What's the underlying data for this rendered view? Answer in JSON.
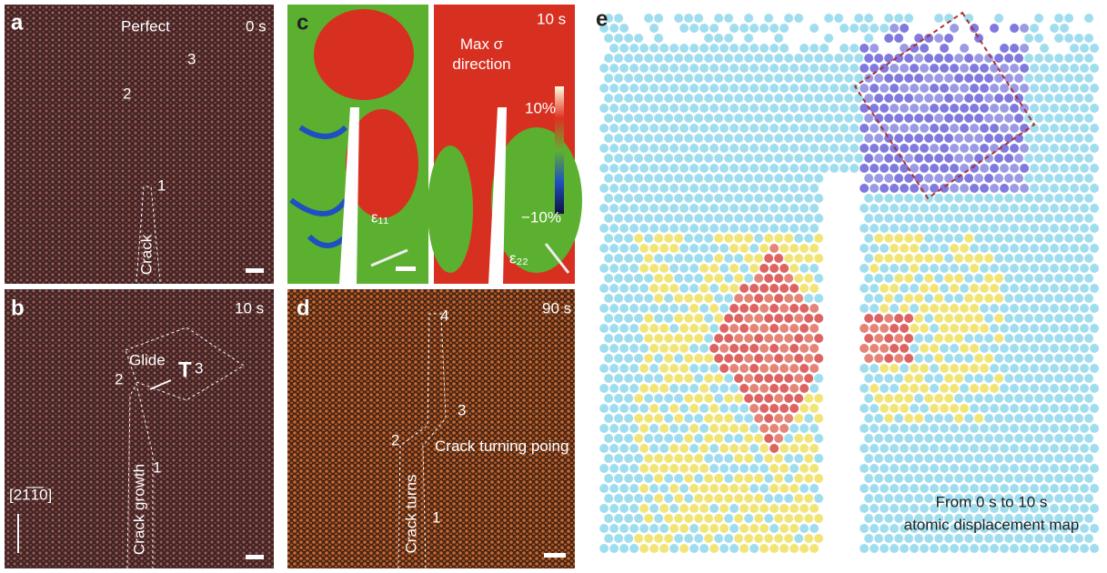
{
  "panels": {
    "a": {
      "label": "a",
      "title": "Perfect",
      "time": "0 s",
      "markers": [
        "3",
        "2",
        "1"
      ],
      "crack": "Crack"
    },
    "b": {
      "label": "b",
      "time": "10 s",
      "glide": "Glide",
      "markers": [
        "3",
        "2",
        "1"
      ],
      "crack": "Crack growth",
      "direction": "[21̅1̅0]"
    },
    "c": {
      "label": "c",
      "time": "10 s",
      "annotation": "Max σ direction",
      "colorbar_max": "10%",
      "colorbar_min": "−10%",
      "strain_left": "ε₁₁",
      "strain_right": "ε₂₂"
    },
    "d": {
      "label": "d",
      "time": "90 s",
      "markers": [
        "4",
        "3",
        "2",
        "1"
      ],
      "crack": "Crack turns",
      "turning": "Crack turning poing"
    },
    "e": {
      "label": "e",
      "caption_line1": "From 0 s to 10 s",
      "caption_line2": "atomic displacement map"
    }
  }
}
